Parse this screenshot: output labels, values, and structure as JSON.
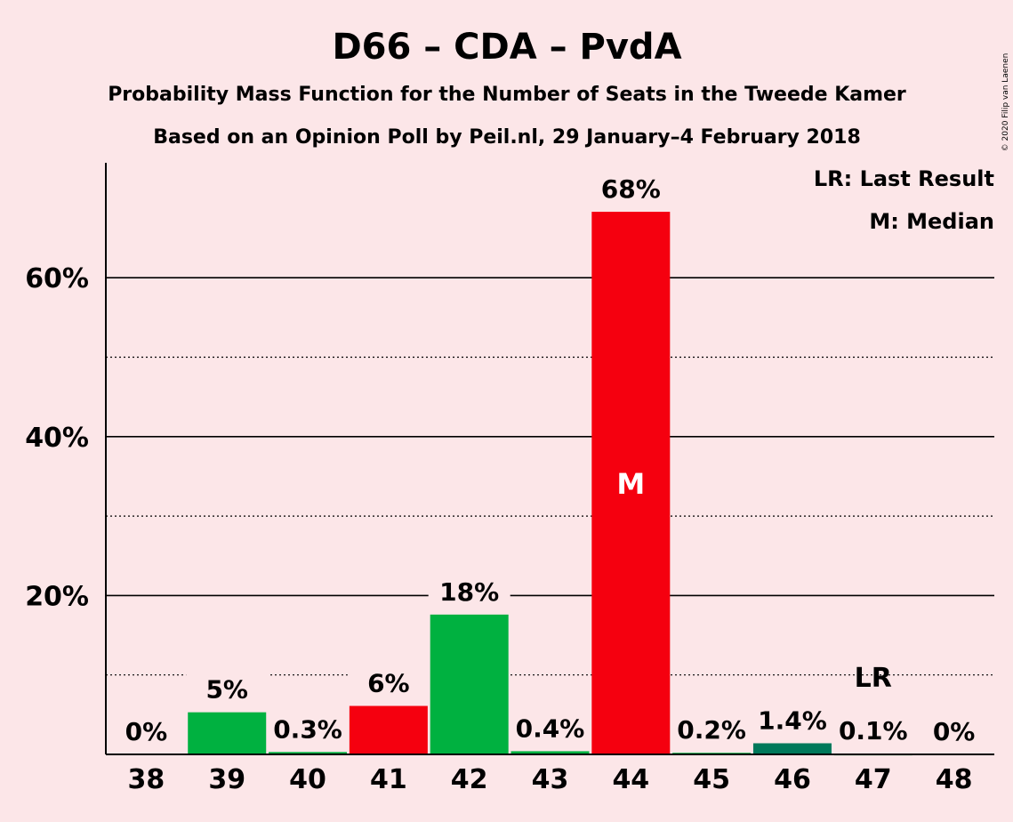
{
  "chart_data": {
    "type": "bar",
    "title": "D66 – CDA – PvdA",
    "subtitle_line1": "Probability Mass Function for the Number of Seats in the Tweede Kamer",
    "subtitle_line2": "Based on an Opinion Poll by Peil.nl, 29 January–4 February 2018",
    "copyright": "© 2020 Filip van Laenen",
    "legend": {
      "last_result": "LR: Last Result",
      "median": "M: Median",
      "placement": "top-right"
    },
    "xlabel": "",
    "ylabel": "",
    "ylim": [
      0,
      75
    ],
    "y_ticks": [
      {
        "value": 20,
        "label": "20%"
      },
      {
        "value": 40,
        "label": "40%"
      },
      {
        "value": 60,
        "label": "60%"
      }
    ],
    "minor_gridlines": [
      10,
      30,
      50
    ],
    "categories": [
      "38",
      "39",
      "40",
      "41",
      "42",
      "43",
      "44",
      "45",
      "46",
      "47",
      "48"
    ],
    "values": [
      0,
      5.3,
      0.3,
      6.1,
      17.6,
      0.4,
      68.3,
      0.2,
      1.4,
      0.1,
      0
    ],
    "labels": [
      "0%",
      "5%",
      "0.3%",
      "6%",
      "18%",
      "0.4%",
      "68%",
      "0.2%",
      "1.4%",
      "0.1%",
      "0%"
    ],
    "colors": [
      "#00b140",
      "#00b140",
      "#00b140",
      "#f5000f",
      "#00b140",
      "#00b140",
      "#f5000f",
      "#00b140",
      "#00785a",
      "#00b140",
      "#00b140"
    ],
    "median_category": "44",
    "median_marker": "M",
    "last_result_category": "47",
    "last_result_marker": "LR"
  }
}
